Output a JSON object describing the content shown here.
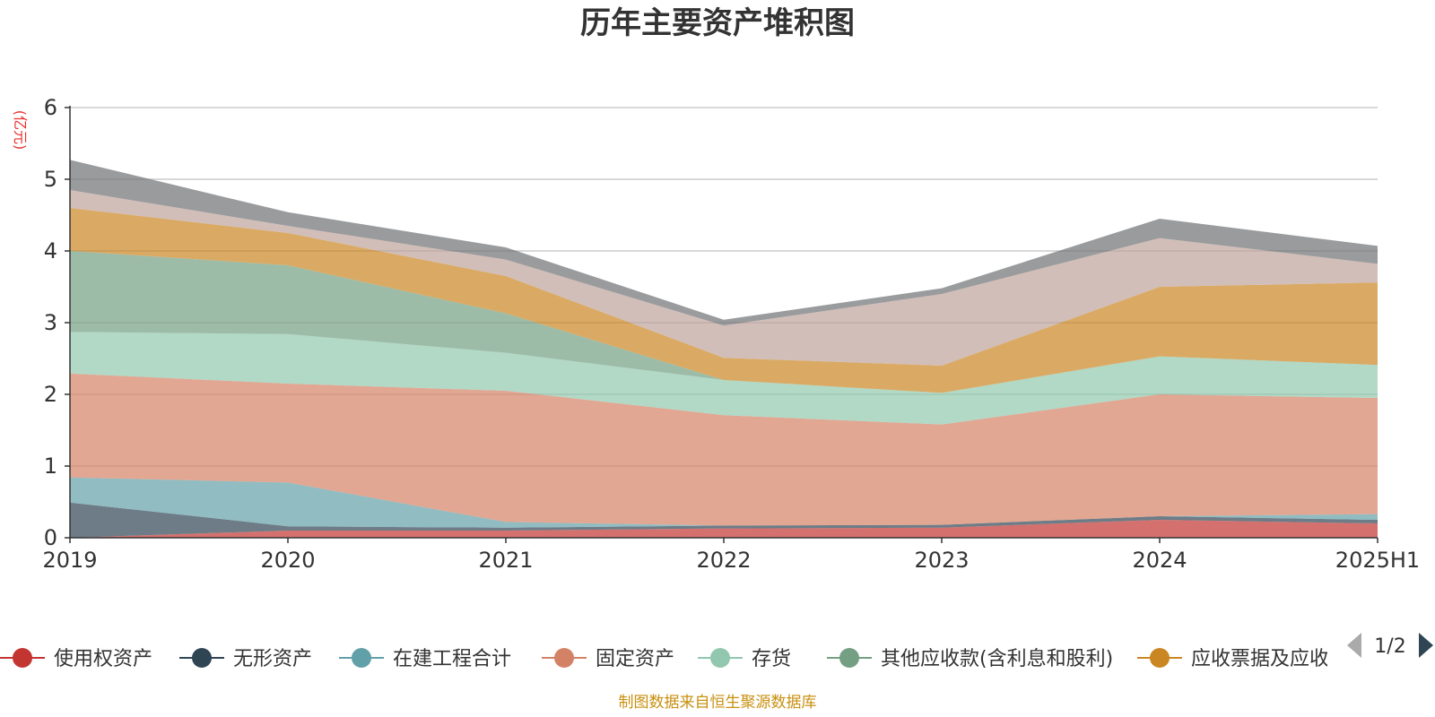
{
  "title": "历年主要资产堆积图",
  "footer": "制图数据来自恒生聚源数据库",
  "legend_page": "1/2",
  "chart_data": {
    "type": "area",
    "stacked": true,
    "title": "历年主要资产堆积图",
    "ylabel": "(亿元)",
    "xlabel": "",
    "x": [
      "2019",
      "2020",
      "2021",
      "2022",
      "2023",
      "2024",
      "2025H1"
    ],
    "ylim": [
      0,
      6
    ],
    "yticks": [
      0,
      1,
      2,
      3,
      4,
      5,
      6
    ],
    "grid": true,
    "legend_position": "bottom",
    "series": [
      {
        "name": "使用权资产",
        "color": "#c23531",
        "values": [
          0.0,
          0.1,
          0.1,
          0.13,
          0.14,
          0.25,
          0.2
        ]
      },
      {
        "name": "无形资产",
        "color": "#2f4554",
        "values": [
          0.49,
          0.06,
          0.04,
          0.04,
          0.04,
          0.05,
          0.05
        ]
      },
      {
        "name": "在建工程合计",
        "color": "#61a0a8",
        "values": [
          0.35,
          0.61,
          0.08,
          0.0,
          0.0,
          0.0,
          0.08
        ]
      },
      {
        "name": "固定资产",
        "color": "#d48265",
        "values": [
          1.45,
          1.38,
          1.83,
          1.54,
          1.4,
          1.7,
          1.62
        ]
      },
      {
        "name": "存货",
        "color": "#91c7ae",
        "values": [
          0.58,
          0.69,
          0.53,
          0.49,
          0.44,
          0.53,
          0.46
        ]
      },
      {
        "name": "其他应收款(含利息和股利)",
        "color": "#749f83",
        "values": [
          1.13,
          0.96,
          0.55,
          0.0,
          0.0,
          0.0,
          0.0
        ]
      },
      {
        "name": "应收票据及应收账款",
        "color": "#ca8622",
        "values": [
          0.6,
          0.45,
          0.52,
          0.31,
          0.38,
          0.97,
          1.15
        ]
      },
      {
        "name": "",
        "color": "#bda29a",
        "values": [
          0.25,
          0.1,
          0.23,
          0.45,
          1.0,
          0.68,
          0.26
        ]
      },
      {
        "name": "",
        "color": "#6e7074",
        "values": [
          0.42,
          0.19,
          0.17,
          0.08,
          0.08,
          0.27,
          0.25
        ]
      }
    ]
  }
}
